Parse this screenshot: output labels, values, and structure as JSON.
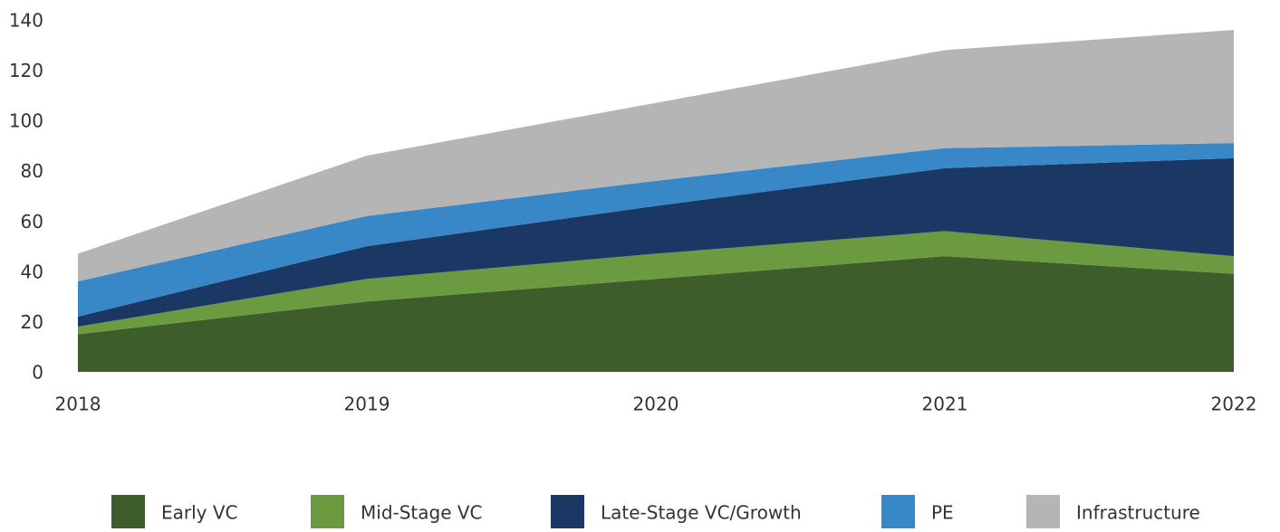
{
  "chart_data": {
    "type": "stacked_area",
    "x": [
      2018,
      2019,
      2020,
      2021,
      2022
    ],
    "xlim": [
      2018,
      2022
    ],
    "ylim": [
      0,
      140
    ],
    "yticks": [
      0,
      20,
      40,
      60,
      80,
      100,
      120,
      140
    ],
    "grid": false,
    "legend": "bottom",
    "series": [
      {
        "name": "Early VC",
        "color": "#3d5e2b",
        "values": [
          15,
          28,
          37,
          46,
          39
        ]
      },
      {
        "name": "Mid-Stage VC",
        "color": "#6c9a40",
        "values": [
          3,
          9,
          10,
          10,
          7
        ]
      },
      {
        "name": "Late-Stage VC/Growth",
        "color": "#1b3864",
        "values": [
          4,
          13,
          19,
          25,
          39
        ]
      },
      {
        "name": "PE",
        "color": "#3888c8",
        "values": [
          14,
          12,
          10,
          8,
          6
        ]
      },
      {
        "name": "Infrastructure",
        "color": "#b5b5b5",
        "values": [
          11,
          24,
          31,
          39,
          45
        ]
      }
    ]
  }
}
